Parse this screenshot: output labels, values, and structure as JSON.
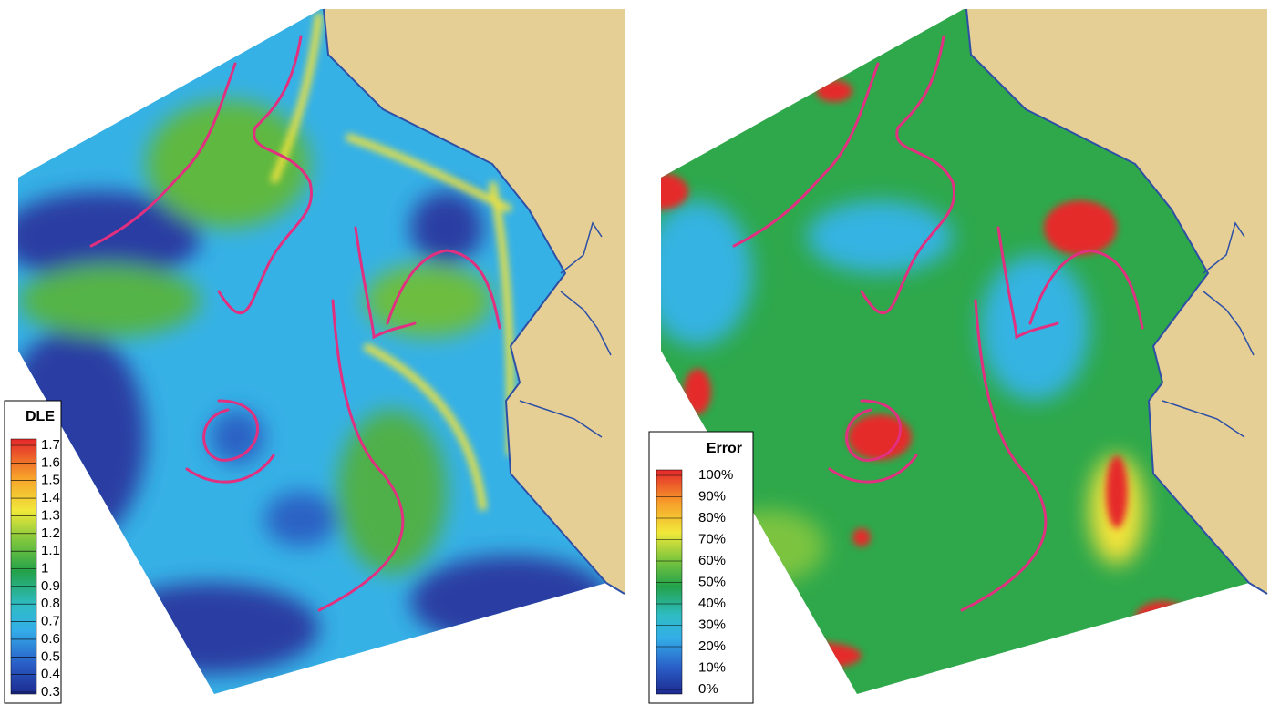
{
  "left_panel": {
    "legend": {
      "title": "DLE",
      "labels": [
        "1.7",
        "1.6",
        "1.5",
        "1.4",
        "1.3",
        "1.2",
        "1.1",
        "1",
        "0.9",
        "0.8",
        "0.7",
        "0.6",
        "0.5",
        "0.4",
        "0.3"
      ]
    }
  },
  "right_panel": {
    "legend": {
      "title": "Error",
      "labels": [
        "100%",
        "90%",
        "80%",
        "70%",
        "60%",
        "50%",
        "40%",
        "30%",
        "20%",
        "10%",
        "0%"
      ]
    }
  }
}
